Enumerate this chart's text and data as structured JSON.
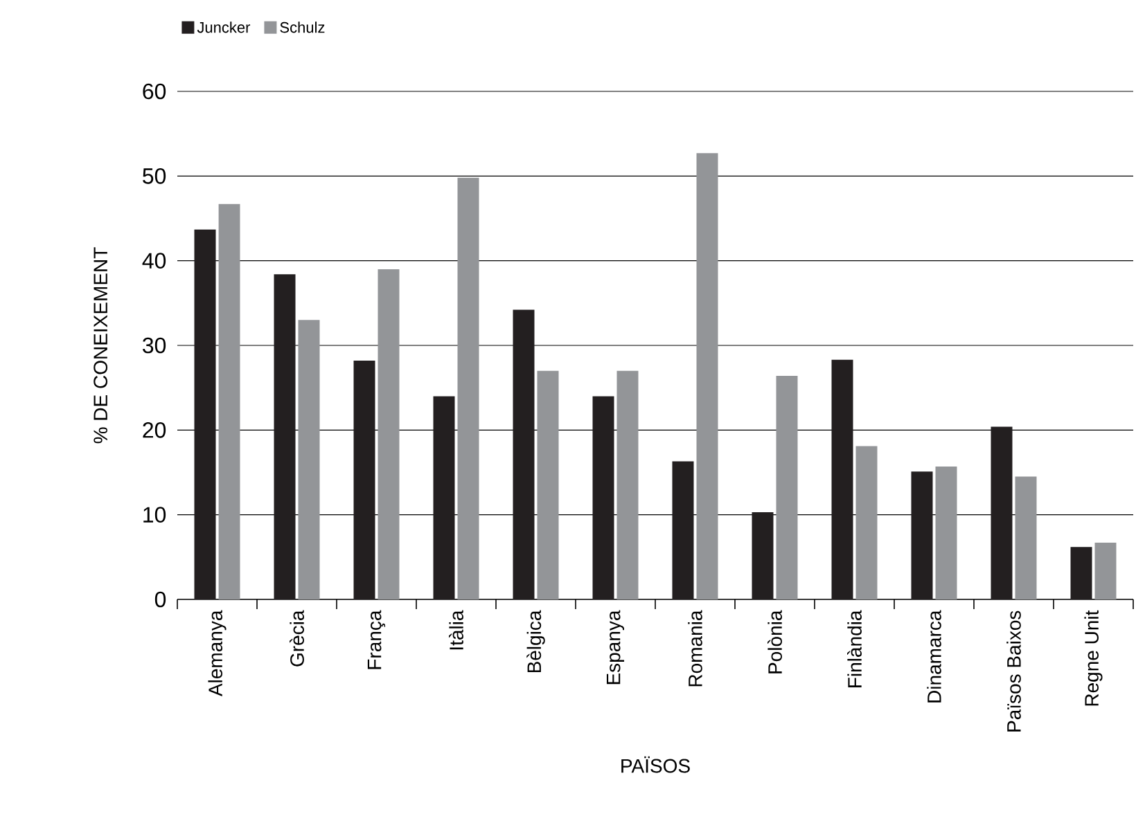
{
  "chart_data": {
    "type": "bar",
    "xlabel": "PAÏSOS",
    "ylabel": "% DE CONEIXEMENT",
    "categories": [
      "Alemanya",
      "Grècia",
      "França",
      "Itàlia",
      "Bèlgica",
      "Espanya",
      "Romania",
      "Polònia",
      "Finlàndia",
      "Dinamarca",
      "Països Baixos",
      "Regne Unit"
    ],
    "series": [
      {
        "name": "Juncker",
        "color": "#231f20",
        "values": [
          43.7,
          38.4,
          28.2,
          24.0,
          34.2,
          24.0,
          16.3,
          10.3,
          28.3,
          15.1,
          20.4,
          6.2
        ]
      },
      {
        "name": "Schulz",
        "color": "#939598",
        "values": [
          46.7,
          33.0,
          39.0,
          49.8,
          27.0,
          27.0,
          52.7,
          26.4,
          18.1,
          15.7,
          14.5,
          6.7
        ]
      }
    ],
    "ylim": [
      0,
      60
    ],
    "yticks": [
      0,
      10,
      20,
      30,
      40,
      50,
      60
    ],
    "grid": "y",
    "legend": "top left"
  }
}
